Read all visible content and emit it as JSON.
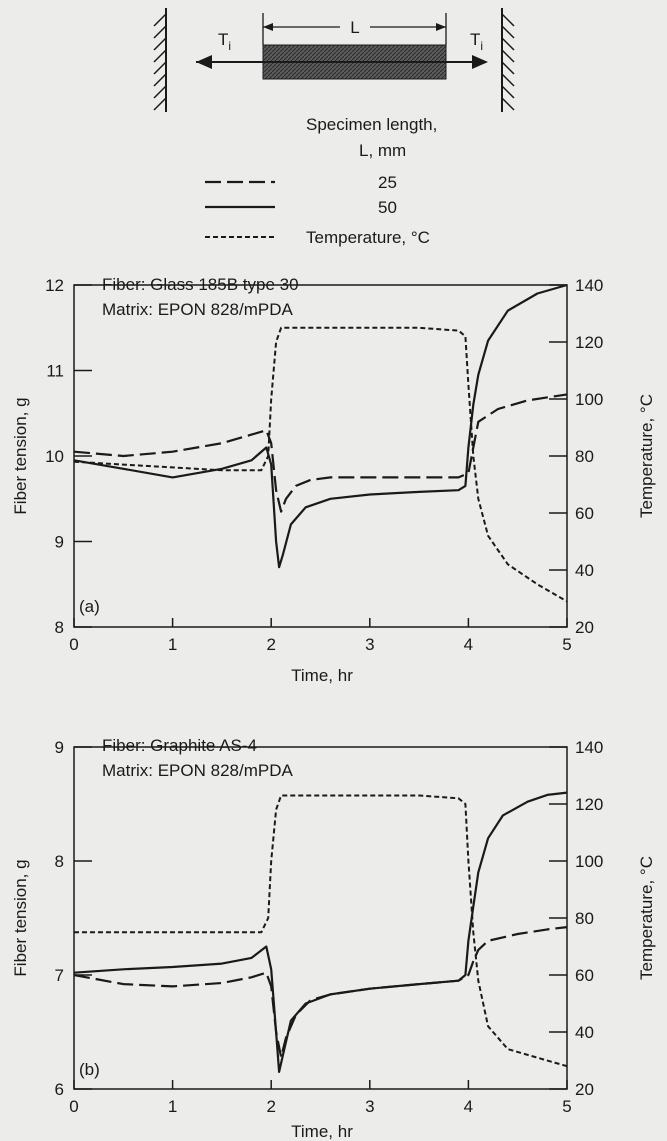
{
  "schematic": {
    "length_label": "L",
    "left_tension_label": "T",
    "left_tension_sub": "i",
    "right_tension_label": "T",
    "right_tension_sub": "i"
  },
  "legend": {
    "title_line1": "Specimen length,",
    "title_line2": "L, mm",
    "entries": [
      {
        "label": "25",
        "style": "dashed"
      },
      {
        "label": "50",
        "style": "solid"
      },
      {
        "label": "Temperature, °C",
        "style": "dotted"
      }
    ]
  },
  "colors": {
    "background": "#ecedea",
    "ink": "#1a1a1a"
  },
  "chart_data": [
    {
      "type": "line",
      "panel_label": "(a)",
      "annotation_line1": "Fiber: Glass 185B type 30",
      "annotation_line2": "Matrix: EPON 828/mPDA",
      "xlabel": "Time, hr",
      "ylabel": "Fiber tension, g",
      "y2label": "Temperature, °C",
      "xlim": [
        0,
        5
      ],
      "ylim": [
        8,
        12
      ],
      "y2lim": [
        20,
        140
      ],
      "xticks": [
        "0",
        "1",
        "2",
        "3",
        "4",
        "5"
      ],
      "yticks": [
        "8",
        "9",
        "10",
        "11",
        "12"
      ],
      "y2ticks": [
        "20",
        "40",
        "60",
        "80",
        "100",
        "120",
        "140"
      ],
      "series": [
        {
          "name": "25",
          "axis": "left",
          "style": "dashed",
          "x": [
            0,
            0.5,
            1.0,
            1.5,
            1.8,
            1.95,
            2.0,
            2.05,
            2.1,
            2.15,
            2.25,
            2.4,
            2.6,
            3.0,
            3.5,
            3.9,
            4.0,
            4.05,
            4.1,
            4.3,
            4.6,
            5.0
          ],
          "y": [
            10.05,
            10.0,
            10.05,
            10.15,
            10.25,
            10.3,
            10.15,
            9.6,
            9.35,
            9.5,
            9.65,
            9.72,
            9.75,
            9.75,
            9.75,
            9.75,
            9.8,
            10.1,
            10.4,
            10.55,
            10.65,
            10.72
          ]
        },
        {
          "name": "50",
          "axis": "left",
          "style": "solid",
          "x": [
            0,
            0.5,
            1.0,
            1.5,
            1.8,
            1.95,
            2.0,
            2.05,
            2.08,
            2.12,
            2.2,
            2.35,
            2.6,
            3.0,
            3.5,
            3.9,
            3.97,
            4.0,
            4.05,
            4.1,
            4.2,
            4.4,
            4.7,
            5.0
          ],
          "y": [
            9.95,
            9.85,
            9.75,
            9.85,
            9.95,
            10.1,
            9.9,
            9.0,
            8.7,
            8.85,
            9.2,
            9.4,
            9.5,
            9.55,
            9.58,
            9.6,
            9.65,
            10.1,
            10.6,
            10.95,
            11.35,
            11.7,
            11.9,
            12.0
          ]
        },
        {
          "name": "Temperature, °C",
          "axis": "right",
          "style": "dotted",
          "x": [
            0,
            0.5,
            1.0,
            1.5,
            1.9,
            1.97,
            2.0,
            2.05,
            2.1,
            2.2,
            2.5,
            3.0,
            3.5,
            3.9,
            3.97,
            4.0,
            4.05,
            4.1,
            4.2,
            4.4,
            4.7,
            5.0
          ],
          "y": [
            78,
            77,
            76,
            75,
            75,
            80,
            100,
            120,
            125,
            125,
            125,
            125,
            125,
            124,
            122,
            105,
            80,
            65,
            52,
            42,
            35,
            29
          ]
        }
      ]
    },
    {
      "type": "line",
      "panel_label": "(b)",
      "annotation_line1": "Fiber: Graphite AS-4",
      "annotation_line2": "Matrix: EPON 828/mPDA",
      "xlabel": "Time, hr",
      "ylabel": "Fiber tension, g",
      "y2label": "Temperature, °C",
      "xlim": [
        0,
        5
      ],
      "ylim": [
        6,
        9
      ],
      "y2lim": [
        20,
        140
      ],
      "xticks": [
        "0",
        "1",
        "2",
        "3",
        "4",
        "5"
      ],
      "yticks": [
        "6",
        "7",
        "8",
        "9"
      ],
      "y2ticks": [
        "20",
        "40",
        "60",
        "80",
        "100",
        "120",
        "140"
      ],
      "series": [
        {
          "name": "25",
          "axis": "left",
          "style": "dashed",
          "x": [
            0,
            0.5,
            1.0,
            1.5,
            1.8,
            1.95,
            2.0,
            2.05,
            2.1,
            2.15,
            2.25,
            2.4,
            2.6,
            3.0,
            3.5,
            3.9,
            4.0,
            4.05,
            4.1,
            4.2,
            4.5,
            4.8,
            5.0
          ],
          "y": [
            7.0,
            6.92,
            6.9,
            6.93,
            6.98,
            7.02,
            6.9,
            6.5,
            6.28,
            6.45,
            6.65,
            6.78,
            6.83,
            6.88,
            6.92,
            6.95,
            7.0,
            7.12,
            7.22,
            7.3,
            7.36,
            7.4,
            7.42
          ]
        },
        {
          "name": "50",
          "axis": "left",
          "style": "solid",
          "x": [
            0,
            0.5,
            1.0,
            1.5,
            1.8,
            1.95,
            2.0,
            2.05,
            2.08,
            2.12,
            2.2,
            2.35,
            2.6,
            3.0,
            3.5,
            3.9,
            3.97,
            4.0,
            4.05,
            4.1,
            4.2,
            4.35,
            4.6,
            4.8,
            5.0
          ],
          "y": [
            7.02,
            7.05,
            7.07,
            7.1,
            7.15,
            7.25,
            7.05,
            6.5,
            6.15,
            6.3,
            6.6,
            6.75,
            6.83,
            6.88,
            6.92,
            6.95,
            7.0,
            7.3,
            7.6,
            7.9,
            8.2,
            8.4,
            8.52,
            8.58,
            8.6
          ]
        },
        {
          "name": "Temperature, °C",
          "axis": "right",
          "style": "dotted",
          "x": [
            0,
            0.5,
            1.0,
            1.5,
            1.9,
            1.97,
            2.0,
            2.05,
            2.1,
            2.2,
            2.5,
            3.0,
            3.5,
            3.9,
            3.97,
            4.0,
            4.05,
            4.1,
            4.2,
            4.4,
            4.7,
            5.0
          ],
          "y": [
            75,
            75,
            75,
            75,
            75,
            80,
            100,
            118,
            123,
            123,
            123,
            123,
            123,
            122,
            120,
            100,
            75,
            58,
            42,
            34,
            31,
            28
          ]
        }
      ]
    }
  ]
}
